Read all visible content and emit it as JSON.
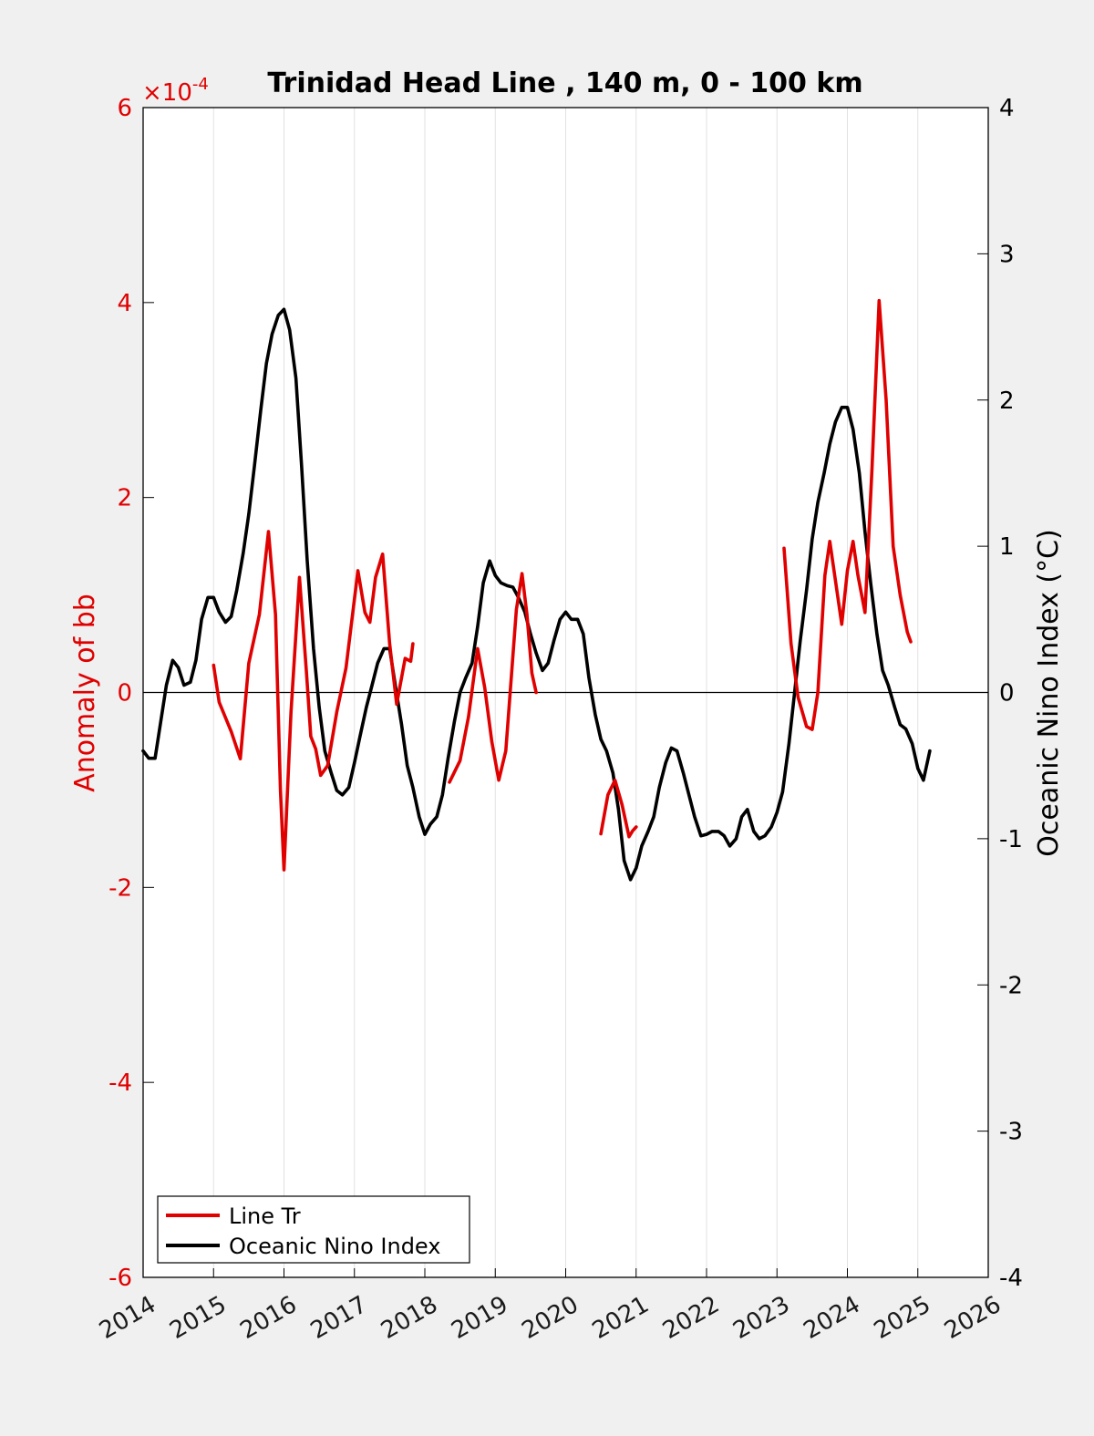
{
  "chart_data": {
    "type": "line",
    "title": "Trinidad Head Line , 140 m, 0 - 100 km",
    "xlim": [
      2014,
      2026
    ],
    "x_ticks": [
      "2014",
      "2015",
      "2016",
      "2017",
      "2018",
      "2019",
      "2020",
      "2021",
      "2022",
      "2023",
      "2024",
      "2025",
      "2026"
    ],
    "left_axis": {
      "label": "Anomaly of bb",
      "ylim": [
        -6,
        6
      ],
      "ticks": [
        "-6",
        "-4",
        "-2",
        "0",
        "2",
        "4",
        "6"
      ],
      "multiplier": "×10",
      "multiplier_exponent": "-4",
      "color": "#e00000"
    },
    "right_axis": {
      "label": "Oceanic Nino Index (°C)",
      "ylim": [
        -4,
        4
      ],
      "ticks": [
        "-4",
        "-3",
        "-2",
        "-1",
        "0",
        "1",
        "2",
        "3",
        "4"
      ],
      "color": "#000000"
    },
    "grid": "vertical",
    "legend": {
      "position": "bottom-left"
    },
    "series": [
      {
        "name": "Line Tr",
        "axis": "left",
        "color": "#e00000",
        "segments": [
          [
            [
              2015.0,
              0.28
            ],
            [
              2015.08,
              -0.1
            ],
            [
              2015.25,
              -0.4
            ],
            [
              2015.38,
              -0.68
            ],
            [
              2015.5,
              0.3
            ],
            [
              2015.65,
              0.8
            ],
            [
              2015.78,
              1.65
            ],
            [
              2015.88,
              0.8
            ],
            [
              2015.95,
              -1.0
            ],
            [
              2016.0,
              -1.82
            ],
            [
              2016.1,
              -0.2
            ],
            [
              2016.22,
              1.18
            ],
            [
              2016.32,
              0.2
            ],
            [
              2016.38,
              -0.45
            ],
            [
              2016.45,
              -0.58
            ],
            [
              2016.52,
              -0.85
            ],
            [
              2016.62,
              -0.75
            ],
            [
              2016.75,
              -0.2
            ],
            [
              2016.88,
              0.25
            ],
            [
              2017.05,
              1.25
            ],
            [
              2017.15,
              0.82
            ],
            [
              2017.22,
              0.72
            ],
            [
              2017.3,
              1.18
            ],
            [
              2017.4,
              1.42
            ],
            [
              2017.5,
              0.5
            ],
            [
              2017.6,
              -0.12
            ],
            [
              2017.72,
              0.35
            ],
            [
              2017.8,
              0.32
            ],
            [
              2017.83,
              0.5
            ]
          ],
          [
            [
              2018.35,
              -0.92
            ],
            [
              2018.5,
              -0.7
            ],
            [
              2018.62,
              -0.25
            ],
            [
              2018.75,
              0.45
            ],
            [
              2018.85,
              0.05
            ],
            [
              2018.95,
              -0.5
            ],
            [
              2019.05,
              -0.9
            ],
            [
              2019.15,
              -0.6
            ],
            [
              2019.3,
              0.85
            ],
            [
              2019.38,
              1.22
            ],
            [
              2019.45,
              0.8
            ],
            [
              2019.52,
              0.2
            ],
            [
              2019.58,
              0.0
            ]
          ],
          [
            [
              2020.5,
              -1.45
            ],
            [
              2020.6,
              -1.05
            ],
            [
              2020.7,
              -0.9
            ],
            [
              2020.8,
              -1.15
            ],
            [
              2020.9,
              -1.48
            ],
            [
              2020.95,
              -1.42
            ],
            [
              2021.0,
              -1.38
            ]
          ]
        ],
        "segments_2": [
          [
            [
              2023.1,
              1.48
            ],
            [
              2023.2,
              0.5
            ],
            [
              2023.3,
              -0.05
            ],
            [
              2023.42,
              -0.35
            ],
            [
              2023.5,
              -0.38
            ],
            [
              2023.58,
              0.0
            ],
            [
              2023.68,
              1.2
            ],
            [
              2023.75,
              1.55
            ],
            [
              2023.85,
              1.05
            ],
            [
              2023.92,
              0.7
            ],
            [
              2024.0,
              1.25
            ],
            [
              2024.08,
              1.55
            ],
            [
              2024.15,
              1.2
            ],
            [
              2024.25,
              0.82
            ],
            [
              2024.35,
              2.3
            ],
            [
              2024.45,
              4.02
            ],
            [
              2024.55,
              3.0
            ],
            [
              2024.65,
              1.5
            ],
            [
              2024.75,
              1.0
            ],
            [
              2024.85,
              0.62
            ],
            [
              2024.9,
              0.52
            ]
          ]
        ]
      },
      {
        "name": "Oceanic Nino Index",
        "axis": "right",
        "color": "#000000",
        "points": [
          [
            2014.0,
            -0.4
          ],
          [
            2014.08,
            -0.45
          ],
          [
            2014.17,
            -0.45
          ],
          [
            2014.25,
            -0.2
          ],
          [
            2014.33,
            0.05
          ],
          [
            2014.42,
            0.22
          ],
          [
            2014.5,
            0.17
          ],
          [
            2014.58,
            0.05
          ],
          [
            2014.67,
            0.07
          ],
          [
            2014.75,
            0.22
          ],
          [
            2014.83,
            0.5
          ],
          [
            2014.92,
            0.65
          ],
          [
            2015.0,
            0.65
          ],
          [
            2015.08,
            0.55
          ],
          [
            2015.17,
            0.48
          ],
          [
            2015.25,
            0.52
          ],
          [
            2015.33,
            0.7
          ],
          [
            2015.42,
            0.95
          ],
          [
            2015.5,
            1.22
          ],
          [
            2015.58,
            1.55
          ],
          [
            2015.67,
            1.93
          ],
          [
            2015.75,
            2.25
          ],
          [
            2015.83,
            2.45
          ],
          [
            2015.92,
            2.58
          ],
          [
            2016.0,
            2.62
          ],
          [
            2016.08,
            2.48
          ],
          [
            2016.17,
            2.15
          ],
          [
            2016.25,
            1.55
          ],
          [
            2016.33,
            0.9
          ],
          [
            2016.42,
            0.3
          ],
          [
            2016.5,
            -0.1
          ],
          [
            2016.58,
            -0.4
          ],
          [
            2016.67,
            -0.55
          ],
          [
            2016.75,
            -0.67
          ],
          [
            2016.83,
            -0.7
          ],
          [
            2016.92,
            -0.65
          ],
          [
            2017.0,
            -0.48
          ],
          [
            2017.08,
            -0.3
          ],
          [
            2017.17,
            -0.1
          ],
          [
            2017.25,
            0.05
          ],
          [
            2017.33,
            0.2
          ],
          [
            2017.42,
            0.3
          ],
          [
            2017.5,
            0.3
          ],
          [
            2017.58,
            0.05
          ],
          [
            2017.67,
            -0.22
          ],
          [
            2017.75,
            -0.5
          ],
          [
            2017.83,
            -0.65
          ],
          [
            2017.92,
            -0.85
          ],
          [
            2018.0,
            -0.97
          ],
          [
            2018.08,
            -0.9
          ],
          [
            2018.17,
            -0.85
          ],
          [
            2018.25,
            -0.7
          ],
          [
            2018.33,
            -0.45
          ],
          [
            2018.42,
            -0.2
          ],
          [
            2018.5,
            0.0
          ],
          [
            2018.58,
            0.1
          ],
          [
            2018.67,
            0.2
          ],
          [
            2018.75,
            0.45
          ],
          [
            2018.83,
            0.75
          ],
          [
            2018.92,
            0.9
          ],
          [
            2019.0,
            0.8
          ],
          [
            2019.08,
            0.75
          ],
          [
            2019.17,
            0.73
          ],
          [
            2019.25,
            0.72
          ],
          [
            2019.33,
            0.65
          ],
          [
            2019.42,
            0.55
          ],
          [
            2019.5,
            0.4
          ],
          [
            2019.58,
            0.27
          ],
          [
            2019.67,
            0.15
          ],
          [
            2019.75,
            0.2
          ],
          [
            2019.83,
            0.35
          ],
          [
            2019.92,
            0.5
          ],
          [
            2020.0,
            0.55
          ],
          [
            2020.08,
            0.5
          ],
          [
            2020.17,
            0.5
          ],
          [
            2020.25,
            0.4
          ],
          [
            2020.33,
            0.1
          ],
          [
            2020.42,
            -0.15
          ],
          [
            2020.5,
            -0.32
          ],
          [
            2020.58,
            -0.4
          ],
          [
            2020.67,
            -0.55
          ],
          [
            2020.75,
            -0.8
          ],
          [
            2020.83,
            -1.15
          ],
          [
            2020.92,
            -1.28
          ],
          [
            2021.0,
            -1.2
          ],
          [
            2021.08,
            -1.05
          ],
          [
            2021.17,
            -0.95
          ],
          [
            2021.25,
            -0.85
          ],
          [
            2021.33,
            -0.65
          ],
          [
            2021.42,
            -0.48
          ],
          [
            2021.5,
            -0.38
          ],
          [
            2021.58,
            -0.4
          ],
          [
            2021.67,
            -0.55
          ],
          [
            2021.75,
            -0.7
          ],
          [
            2021.83,
            -0.85
          ],
          [
            2021.92,
            -0.98
          ],
          [
            2022.0,
            -0.97
          ],
          [
            2022.08,
            -0.95
          ],
          [
            2022.17,
            -0.95
          ],
          [
            2022.25,
            -0.98
          ],
          [
            2022.33,
            -1.05
          ],
          [
            2022.42,
            -1.0
          ],
          [
            2022.5,
            -0.85
          ],
          [
            2022.58,
            -0.8
          ],
          [
            2022.67,
            -0.95
          ],
          [
            2022.75,
            -1.0
          ],
          [
            2022.83,
            -0.98
          ],
          [
            2022.92,
            -0.92
          ],
          [
            2023.0,
            -0.82
          ],
          [
            2023.08,
            -0.68
          ],
          [
            2023.17,
            -0.35
          ],
          [
            2023.25,
            0.0
          ],
          [
            2023.33,
            0.35
          ],
          [
            2023.42,
            0.7
          ],
          [
            2023.5,
            1.05
          ],
          [
            2023.58,
            1.3
          ],
          [
            2023.67,
            1.5
          ],
          [
            2023.75,
            1.7
          ],
          [
            2023.83,
            1.85
          ],
          [
            2023.92,
            1.95
          ],
          [
            2024.0,
            1.95
          ],
          [
            2024.08,
            1.8
          ],
          [
            2024.17,
            1.5
          ],
          [
            2024.25,
            1.1
          ],
          [
            2024.33,
            0.75
          ],
          [
            2024.42,
            0.4
          ],
          [
            2024.5,
            0.15
          ],
          [
            2024.58,
            0.05
          ],
          [
            2024.67,
            -0.1
          ],
          [
            2024.75,
            -0.22
          ],
          [
            2024.83,
            -0.25
          ],
          [
            2024.92,
            -0.35
          ],
          [
            2025.0,
            -0.52
          ],
          [
            2025.08,
            -0.6
          ],
          [
            2025.17,
            -0.4
          ]
        ]
      }
    ]
  }
}
